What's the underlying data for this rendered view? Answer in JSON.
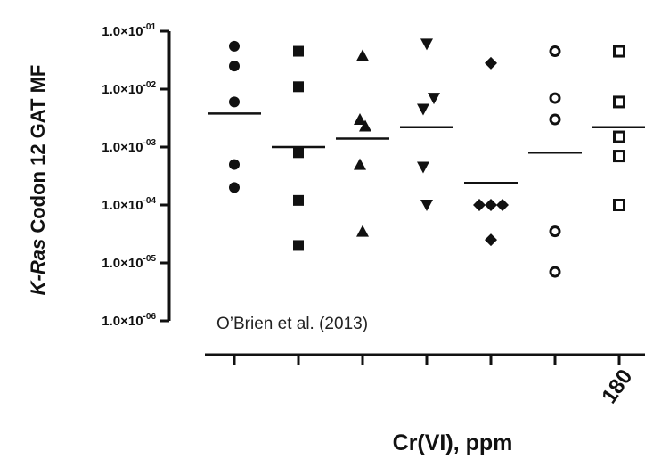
{
  "chart_data": {
    "type": "scatter",
    "title": "",
    "xlabel": "Cr(VI), ppm",
    "ylabel": {
      "italic_part": "K-Ras",
      "rest": " Codon 12 GAT  MF"
    },
    "y_scale": "log",
    "ylim": [
      1e-06,
      0.1
    ],
    "y_ticks": [
      {
        "value": 0.1,
        "mantissa": "1.0×10",
        "exponent": "-01"
      },
      {
        "value": 0.01,
        "mantissa": "1.0×10",
        "exponent": "-02"
      },
      {
        "value": 0.001,
        "mantissa": "1.0×10",
        "exponent": "-03"
      },
      {
        "value": 0.0001,
        "mantissa": "1.0×10",
        "exponent": "-04"
      },
      {
        "value": 1e-05,
        "mantissa": "1.0×10",
        "exponent": "-05"
      },
      {
        "value": 1e-06,
        "mantissa": "1.0×10",
        "exponent": "-06"
      }
    ],
    "x_tick_labels": [
      "",
      "",
      "",
      "",
      "",
      "",
      "180"
    ],
    "annotation": "O’Brien et al. (2013)",
    "groups": [
      {
        "marker": "circle-filled",
        "points": [
          0.055,
          0.025,
          0.006,
          0.0005,
          0.0002
        ],
        "mean": 0.0038
      },
      {
        "marker": "square-filled",
        "points": [
          0.045,
          0.011,
          0.0008,
          0.00012,
          2e-05
        ],
        "mean": 0.001
      },
      {
        "marker": "triangle-up-filled",
        "points": [
          0.038,
          0.003,
          0.0023,
          0.0005,
          3.5e-05
        ],
        "mean": 0.0014
      },
      {
        "marker": "triangle-down-filled",
        "points": [
          0.06,
          0.007,
          0.0045,
          0.00045,
          0.0001
        ],
        "mean": 0.0022
      },
      {
        "marker": "diamond-filled",
        "points": [
          0.028,
          0.0001,
          0.0001,
          0.0001,
          2.5e-05
        ],
        "mean": 0.00024
      },
      {
        "marker": "circle-open",
        "points": [
          0.045,
          0.007,
          0.003,
          3.5e-05,
          7e-06
        ],
        "mean": 0.0008
      },
      {
        "marker": "square-open",
        "points": [
          0.045,
          0.006,
          0.0015,
          0.0007,
          0.0001
        ],
        "mean": 0.0022
      }
    ]
  }
}
